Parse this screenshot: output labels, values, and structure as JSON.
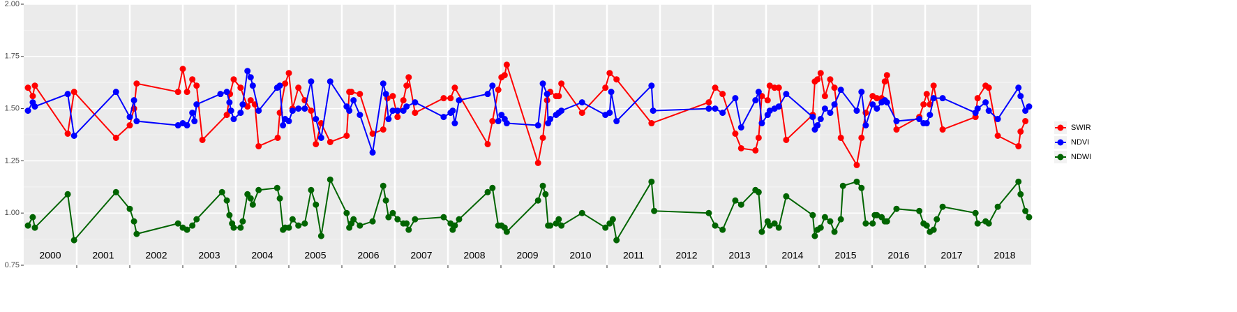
{
  "chart_data": {
    "type": "line",
    "legend": "right",
    "grid": true,
    "xlim": [
      2000,
      2019
    ],
    "ylim": [
      0.75,
      2.0
    ],
    "yticks": [
      {
        "value": 0.75,
        "label": "0.75"
      },
      {
        "value": 1.0,
        "label": "1.00"
      },
      {
        "value": 1.25,
        "label": "1.25"
      },
      {
        "value": 1.5,
        "label": "1.50"
      },
      {
        "value": 1.75,
        "label": "1.75"
      },
      {
        "value": 2.0,
        "label": "2.00"
      }
    ],
    "xticks": [
      2001,
      2002,
      2003,
      2004,
      2005,
      2006,
      2007,
      2008,
      2009,
      2010,
      2011,
      2012,
      2013,
      2014,
      2015,
      2016,
      2017,
      2018
    ],
    "annotations": [
      {
        "x": 2000.5,
        "text": "2000"
      },
      {
        "x": 2001.5,
        "text": "2001"
      },
      {
        "x": 2002.5,
        "text": "2002"
      },
      {
        "x": 2003.5,
        "text": "2003"
      },
      {
        "x": 2004.5,
        "text": "2004"
      },
      {
        "x": 2005.5,
        "text": "2005"
      },
      {
        "x": 2006.5,
        "text": "2006"
      },
      {
        "x": 2007.5,
        "text": "2007"
      },
      {
        "x": 2008.5,
        "text": "2008"
      },
      {
        "x": 2009.5,
        "text": "2009"
      },
      {
        "x": 2010.5,
        "text": "2010"
      },
      {
        "x": 2011.5,
        "text": "2011"
      },
      {
        "x": 2012.5,
        "text": "2012"
      },
      {
        "x": 2013.5,
        "text": "2013"
      },
      {
        "x": 2014.5,
        "text": "2014"
      },
      {
        "x": 2015.5,
        "text": "2015"
      },
      {
        "x": 2016.5,
        "text": "2016"
      },
      {
        "x": 2017.5,
        "text": "2017"
      },
      {
        "x": 2018.5,
        "text": "2018"
      }
    ],
    "series": [
      {
        "name": "SWIR",
        "color": "#ff0000",
        "x": [
          2000.08,
          2000.17,
          2000.21,
          2000.83,
          2000.95,
          2001.74,
          2002.0,
          2002.08,
          2002.13,
          2002.91,
          2003.0,
          2003.08,
          2003.18,
          2003.26,
          2003.37,
          2003.83,
          2003.89,
          2003.96,
          2004.09,
          2004.22,
          2004.28,
          2004.36,
          2004.43,
          2004.79,
          2004.83,
          2004.93,
          2005.0,
          2005.07,
          2005.18,
          2005.3,
          2005.42,
          2005.51,
          2005.61,
          2005.78,
          2006.09,
          2006.14,
          2006.18,
          2006.34,
          2006.58,
          2006.78,
          2006.86,
          2006.96,
          2007.05,
          2007.16,
          2007.22,
          2007.26,
          2007.38,
          2007.92,
          2008.05,
          2008.13,
          2008.75,
          2008.84,
          2008.95,
          2009.01,
          2009.07,
          2009.11,
          2009.7,
          2009.79,
          2009.87,
          2009.93,
          2010.04,
          2010.09,
          2010.14,
          2010.53,
          2010.97,
          2011.05,
          2011.18,
          2011.84,
          2012.92,
          2013.04,
          2013.18,
          2013.42,
          2013.53,
          2013.8,
          2013.86,
          2013.92,
          2014.03,
          2014.07,
          2014.16,
          2014.24,
          2014.38,
          2014.88,
          2014.92,
          2014.97,
          2015.03,
          2015.11,
          2015.21,
          2015.29,
          2015.41,
          2015.71,
          2015.8,
          2015.88,
          2016.01,
          2016.09,
          2016.18,
          2016.24,
          2016.28,
          2016.46,
          2016.89,
          2016.97,
          2017.03,
          2017.09,
          2017.16,
          2017.33,
          2017.95,
          2017.99,
          2018.14,
          2018.2,
          2018.37,
          2018.76,
          2018.8,
          2018.89
        ],
        "values": [
          1.6,
          1.56,
          1.61,
          1.38,
          1.58,
          1.36,
          1.42,
          1.5,
          1.62,
          1.58,
          1.69,
          1.58,
          1.64,
          1.61,
          1.35,
          1.47,
          1.57,
          1.64,
          1.6,
          1.51,
          1.54,
          1.52,
          1.32,
          1.36,
          1.48,
          1.62,
          1.67,
          1.5,
          1.6,
          1.54,
          1.49,
          1.33,
          1.43,
          1.34,
          1.37,
          1.58,
          1.58,
          1.57,
          1.38,
          1.4,
          1.55,
          1.56,
          1.46,
          1.54,
          1.61,
          1.65,
          1.48,
          1.55,
          1.55,
          1.6,
          1.33,
          1.44,
          1.59,
          1.65,
          1.66,
          1.71,
          1.24,
          1.36,
          1.54,
          1.58,
          1.56,
          1.56,
          1.62,
          1.48,
          1.6,
          1.67,
          1.64,
          1.43,
          1.53,
          1.6,
          1.57,
          1.38,
          1.31,
          1.3,
          1.36,
          1.56,
          1.54,
          1.61,
          1.6,
          1.6,
          1.35,
          1.47,
          1.63,
          1.64,
          1.67,
          1.56,
          1.64,
          1.6,
          1.36,
          1.23,
          1.36,
          1.48,
          1.56,
          1.55,
          1.55,
          1.63,
          1.66,
          1.4,
          1.46,
          1.52,
          1.57,
          1.52,
          1.61,
          1.4,
          1.46,
          1.55,
          1.61,
          1.6,
          1.37,
          1.32,
          1.39,
          1.44
        ]
      },
      {
        "name": "NDVI",
        "color": "#0000ff",
        "x": [
          2000.08,
          2000.17,
          2000.21,
          2000.83,
          2000.95,
          2001.74,
          2002.0,
          2002.08,
          2002.13,
          2002.91,
          2003.0,
          2003.08,
          2003.18,
          2003.22,
          2003.26,
          2003.71,
          2003.83,
          2003.88,
          2003.91,
          2003.96,
          2004.09,
          2004.13,
          2004.22,
          2004.28,
          2004.32,
          2004.43,
          2004.78,
          2004.83,
          2004.89,
          2004.93,
          2005.0,
          2005.07,
          2005.18,
          2005.3,
          2005.42,
          2005.51,
          2005.61,
          2005.78,
          2006.09,
          2006.14,
          2006.22,
          2006.34,
          2006.58,
          2006.78,
          2006.83,
          2006.88,
          2006.96,
          2007.05,
          2007.16,
          2007.22,
          2007.38,
          2007.92,
          2008.05,
          2008.09,
          2008.13,
          2008.21,
          2008.75,
          2008.84,
          2008.95,
          2009.01,
          2009.07,
          2009.11,
          2009.7,
          2009.79,
          2009.87,
          2009.89,
          2009.93,
          2010.04,
          2010.09,
          2010.14,
          2010.53,
          2010.97,
          2011.05,
          2011.08,
          2011.18,
          2011.84,
          2011.87,
          2012.92,
          2013.04,
          2013.18,
          2013.42,
          2013.53,
          2013.8,
          2013.86,
          2013.92,
          2014.03,
          2014.07,
          2014.16,
          2014.24,
          2014.38,
          2014.88,
          2014.92,
          2014.97,
          2015.03,
          2015.11,
          2015.21,
          2015.29,
          2015.41,
          2015.71,
          2015.8,
          2015.88,
          2016.01,
          2016.09,
          2016.18,
          2016.24,
          2016.28,
          2016.46,
          2016.89,
          2016.97,
          2017.03,
          2017.09,
          2017.16,
          2017.33,
          2017.95,
          2017.99,
          2018.14,
          2018.2,
          2018.37,
          2018.76,
          2018.8,
          2018.89,
          2018.96
        ],
        "values": [
          1.49,
          1.53,
          1.51,
          1.57,
          1.37,
          1.58,
          1.46,
          1.54,
          1.44,
          1.42,
          1.43,
          1.42,
          1.48,
          1.44,
          1.52,
          1.57,
          1.58,
          1.53,
          1.49,
          1.45,
          1.48,
          1.52,
          1.68,
          1.65,
          1.61,
          1.49,
          1.6,
          1.61,
          1.42,
          1.45,
          1.44,
          1.49,
          1.5,
          1.5,
          1.63,
          1.45,
          1.36,
          1.63,
          1.51,
          1.49,
          1.54,
          1.47,
          1.29,
          1.62,
          1.57,
          1.45,
          1.49,
          1.49,
          1.49,
          1.51,
          1.53,
          1.46,
          1.48,
          1.49,
          1.43,
          1.54,
          1.57,
          1.61,
          1.44,
          1.47,
          1.45,
          1.43,
          1.42,
          1.62,
          1.57,
          1.43,
          1.45,
          1.47,
          1.48,
          1.49,
          1.53,
          1.47,
          1.48,
          1.58,
          1.44,
          1.61,
          1.49,
          1.5,
          1.5,
          1.48,
          1.55,
          1.41,
          1.54,
          1.58,
          1.43,
          1.47,
          1.49,
          1.5,
          1.51,
          1.57,
          1.46,
          1.4,
          1.42,
          1.45,
          1.5,
          1.48,
          1.52,
          1.59,
          1.49,
          1.58,
          1.42,
          1.52,
          1.5,
          1.53,
          1.54,
          1.53,
          1.44,
          1.45,
          1.43,
          1.43,
          1.47,
          1.55,
          1.55,
          1.48,
          1.5,
          1.53,
          1.49,
          1.45,
          1.6,
          1.56,
          1.49,
          1.51
        ]
      },
      {
        "name": "NDWI",
        "color": "#006400",
        "x": [
          2000.08,
          2000.17,
          2000.21,
          2000.83,
          2000.95,
          2001.74,
          2002.0,
          2002.08,
          2002.13,
          2002.91,
          2003.0,
          2003.08,
          2003.18,
          2003.26,
          2003.74,
          2003.83,
          2003.88,
          2003.93,
          2003.96,
          2004.09,
          2004.13,
          2004.22,
          2004.28,
          2004.32,
          2004.43,
          2004.78,
          2004.83,
          2004.89,
          2004.93,
          2005.0,
          2005.07,
          2005.18,
          2005.3,
          2005.42,
          2005.51,
          2005.61,
          2005.78,
          2006.09,
          2006.14,
          2006.18,
          2006.22,
          2006.34,
          2006.58,
          2006.78,
          2006.83,
          2006.88,
          2006.96,
          2007.05,
          2007.16,
          2007.22,
          2007.26,
          2007.38,
          2007.92,
          2008.05,
          2008.09,
          2008.13,
          2008.21,
          2008.75,
          2008.84,
          2008.95,
          2009.01,
          2009.07,
          2009.11,
          2009.7,
          2009.79,
          2009.84,
          2009.89,
          2009.93,
          2010.04,
          2010.09,
          2010.14,
          2010.53,
          2010.97,
          2011.05,
          2011.11,
          2011.18,
          2011.84,
          2011.89,
          2012.92,
          2013.04,
          2013.18,
          2013.42,
          2013.53,
          2013.8,
          2013.86,
          2013.92,
          2014.03,
          2014.07,
          2014.16,
          2014.24,
          2014.38,
          2014.88,
          2014.92,
          2014.97,
          2015.03,
          2015.11,
          2015.21,
          2015.29,
          2015.41,
          2015.45,
          2015.71,
          2015.8,
          2015.88,
          2016.01,
          2016.05,
          2016.09,
          2016.18,
          2016.24,
          2016.28,
          2016.46,
          2016.89,
          2016.97,
          2017.03,
          2017.09,
          2017.16,
          2017.22,
          2017.33,
          2017.95,
          2017.99,
          2018.14,
          2018.2,
          2018.37,
          2018.76,
          2018.8,
          2018.89,
          2018.96
        ],
        "values": [
          0.94,
          0.98,
          0.93,
          1.09,
          0.87,
          1.1,
          1.02,
          0.96,
          0.9,
          0.95,
          0.93,
          0.92,
          0.94,
          0.97,
          1.1,
          1.06,
          0.99,
          0.95,
          0.93,
          0.93,
          0.96,
          1.09,
          1.07,
          1.04,
          1.11,
          1.12,
          1.07,
          0.92,
          0.93,
          0.93,
          0.97,
          0.94,
          0.95,
          1.11,
          1.04,
          0.89,
          1.16,
          1.0,
          0.93,
          0.95,
          0.97,
          0.94,
          0.96,
          1.13,
          1.06,
          0.98,
          1.0,
          0.97,
          0.95,
          0.95,
          0.92,
          0.97,
          0.98,
          0.95,
          0.92,
          0.94,
          0.97,
          1.1,
          1.12,
          0.94,
          0.94,
          0.93,
          0.91,
          1.06,
          1.13,
          1.09,
          0.94,
          0.94,
          0.95,
          0.97,
          0.94,
          1.0,
          0.93,
          0.95,
          0.97,
          0.87,
          1.15,
          1.01,
          1.0,
          0.94,
          0.92,
          1.06,
          1.04,
          1.11,
          1.1,
          0.91,
          0.96,
          0.94,
          0.95,
          0.93,
          1.08,
          0.99,
          0.89,
          0.92,
          0.93,
          0.98,
          0.96,
          0.91,
          0.97,
          1.13,
          1.15,
          1.12,
          0.95,
          0.95,
          0.99,
          0.99,
          0.98,
          0.96,
          0.96,
          1.02,
          1.01,
          0.95,
          0.94,
          0.91,
          0.92,
          0.97,
          1.03,
          1.0,
          0.95,
          0.96,
          0.95,
          1.03,
          1.15,
          1.09,
          1.01,
          0.98
        ]
      }
    ]
  }
}
